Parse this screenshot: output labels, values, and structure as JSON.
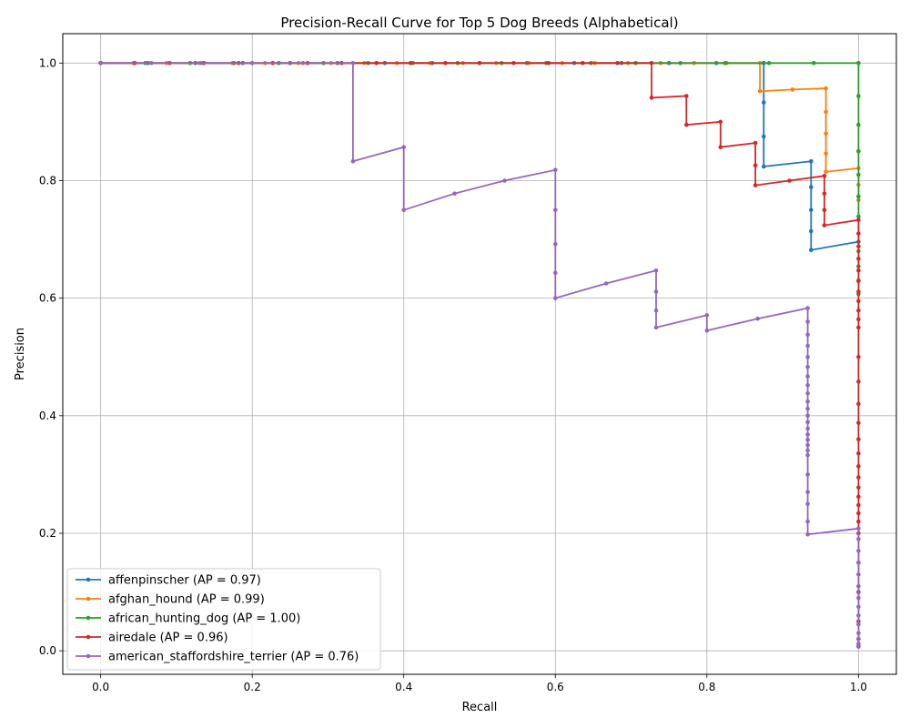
{
  "chart_data": {
    "type": "line",
    "title": "Precision-Recall Curve for Top 5 Dog Breeds (Alphabetical)",
    "xlabel": "Recall",
    "ylabel": "Precision",
    "xlim": [
      -0.05,
      1.05
    ],
    "ylim": [
      -0.04,
      1.05
    ],
    "xticks": [
      "0.0",
      "0.2",
      "0.4",
      "0.6",
      "0.8",
      "1.0"
    ],
    "yticks": [
      "0.0",
      "0.2",
      "0.4",
      "0.6",
      "0.8",
      "1.0"
    ],
    "grid": true,
    "legend_position": "lower-left",
    "series": [
      {
        "name": "affenpinscher (AP = 0.97)",
        "color": "#1f77b4",
        "x": [
          0.0,
          0.0625,
          0.125,
          0.1875,
          0.25,
          0.3125,
          0.375,
          0.4375,
          0.5,
          0.5625,
          0.625,
          0.6875,
          0.75,
          0.8125,
          0.875,
          0.875,
          0.875,
          0.875,
          0.9375,
          0.9375,
          0.9375,
          0.9375,
          0.9375,
          1.0
        ],
        "y": [
          1.0,
          1.0,
          1.0,
          1.0,
          1.0,
          1.0,
          1.0,
          1.0,
          1.0,
          1.0,
          1.0,
          1.0,
          1.0,
          1.0,
          1.0,
          0.933,
          0.875,
          0.824,
          0.833,
          0.789,
          0.75,
          0.714,
          0.682,
          0.696
        ]
      },
      {
        "name": "afghan_hound (AP = 0.99)",
        "color": "#ff7f0e",
        "x": [
          0.0,
          0.043,
          0.087,
          0.13,
          0.174,
          0.217,
          0.261,
          0.304,
          0.348,
          0.391,
          0.435,
          0.478,
          0.522,
          0.565,
          0.609,
          0.652,
          0.696,
          0.739,
          0.783,
          0.826,
          0.87,
          0.87,
          0.913,
          0.957,
          0.957,
          0.957,
          0.957,
          0.957,
          1.0,
          1.0,
          1.0
        ],
        "y": [
          1.0,
          1.0,
          1.0,
          1.0,
          1.0,
          1.0,
          1.0,
          1.0,
          1.0,
          1.0,
          1.0,
          1.0,
          1.0,
          1.0,
          1.0,
          1.0,
          1.0,
          1.0,
          1.0,
          1.0,
          1.0,
          0.952,
          0.955,
          0.957,
          0.917,
          0.88,
          0.846,
          0.815,
          0.821,
          0.793,
          0.767
        ]
      },
      {
        "name": "african_hunting_dog (AP = 1.00)",
        "color": "#2ca02c",
        "x": [
          0.0,
          0.059,
          0.118,
          0.176,
          0.235,
          0.294,
          0.353,
          0.412,
          0.471,
          0.529,
          0.588,
          0.647,
          0.706,
          0.765,
          0.824,
          0.882,
          0.941,
          1.0,
          1.0,
          1.0,
          1.0,
          1.0,
          1.0,
          1.0,
          1.0,
          1.0,
          1.0,
          1.0
        ],
        "y": [
          1.0,
          1.0,
          1.0,
          1.0,
          1.0,
          1.0,
          1.0,
          1.0,
          1.0,
          1.0,
          1.0,
          1.0,
          1.0,
          1.0,
          1.0,
          1.0,
          1.0,
          1.0,
          0.944,
          0.895,
          0.85,
          0.81,
          0.773,
          0.739,
          0.68,
          0.654,
          0.63,
          0.607
        ]
      },
      {
        "name": "airedale (AP = 0.96)",
        "color": "#d62728",
        "x": [
          0.0,
          0.045,
          0.091,
          0.136,
          0.182,
          0.227,
          0.273,
          0.318,
          0.364,
          0.409,
          0.455,
          0.5,
          0.545,
          0.591,
          0.636,
          0.682,
          0.727,
          0.727,
          0.773,
          0.773,
          0.818,
          0.818,
          0.864,
          0.864,
          0.864,
          0.909,
          0.955,
          0.955,
          0.955,
          0.955,
          1.0,
          1.0,
          1.0,
          1.0,
          1.0,
          1.0,
          1.0,
          1.0,
          1.0,
          1.0,
          1.0,
          1.0,
          1.0,
          1.0,
          1.0,
          1.0,
          1.0,
          1.0,
          1.0,
          1.0,
          1.0,
          1.0,
          1.0,
          1.0,
          1.0,
          1.0,
          1.0,
          1.0,
          1.0,
          1.0
        ],
        "y": [
          1.0,
          1.0,
          1.0,
          1.0,
          1.0,
          1.0,
          1.0,
          1.0,
          1.0,
          1.0,
          1.0,
          1.0,
          1.0,
          1.0,
          1.0,
          1.0,
          1.0,
          0.941,
          0.944,
          0.895,
          0.9,
          0.857,
          0.864,
          0.826,
          0.792,
          0.8,
          0.808,
          0.778,
          0.75,
          0.724,
          0.733,
          0.71,
          0.688,
          0.667,
          0.647,
          0.629,
          0.611,
          0.595,
          0.579,
          0.564,
          0.55,
          0.5,
          0.458,
          0.42,
          0.388,
          0.36,
          0.336,
          0.314,
          0.295,
          0.278,
          0.262,
          0.248,
          0.234,
          0.22,
          0.2,
          0.15,
          0.1,
          0.05,
          0.02,
          0.008
        ]
      },
      {
        "name": "american_staffordshire_terrier (AP = 0.76)",
        "color": "#9467bd",
        "x": [
          0.0,
          0.067,
          0.133,
          0.2,
          0.267,
          0.333,
          0.333,
          0.4,
          0.4,
          0.467,
          0.533,
          0.6,
          0.6,
          0.6,
          0.6,
          0.6,
          0.667,
          0.733,
          0.733,
          0.733,
          0.733,
          0.8,
          0.8,
          0.867,
          0.933,
          0.933,
          0.933,
          0.933,
          0.933,
          0.933,
          0.933,
          0.933,
          0.933,
          0.933,
          0.933,
          0.933,
          0.933,
          0.933,
          0.933,
          0.933,
          0.933,
          0.933,
          0.933,
          0.933,
          0.933,
          0.933,
          0.933,
          0.933,
          1.0,
          1.0,
          1.0,
          1.0,
          1.0,
          1.0,
          1.0,
          1.0,
          1.0,
          1.0,
          1.0,
          1.0,
          1.0,
          1.0
        ],
        "y": [
          1.0,
          1.0,
          1.0,
          1.0,
          1.0,
          1.0,
          0.833,
          0.857,
          0.75,
          0.778,
          0.8,
          0.818,
          0.75,
          0.692,
          0.643,
          0.6,
          0.625,
          0.647,
          0.611,
          0.579,
          0.55,
          0.571,
          0.545,
          0.565,
          0.583,
          0.56,
          0.538,
          0.519,
          0.5,
          0.483,
          0.467,
          0.452,
          0.438,
          0.424,
          0.412,
          0.4,
          0.389,
          0.378,
          0.368,
          0.359,
          0.35,
          0.341,
          0.333,
          0.3,
          0.27,
          0.25,
          0.22,
          0.198,
          0.208,
          0.19,
          0.17,
          0.15,
          0.13,
          0.11,
          0.09,
          0.075,
          0.06,
          0.045,
          0.03,
          0.02,
          0.012,
          0.007
        ]
      }
    ]
  }
}
